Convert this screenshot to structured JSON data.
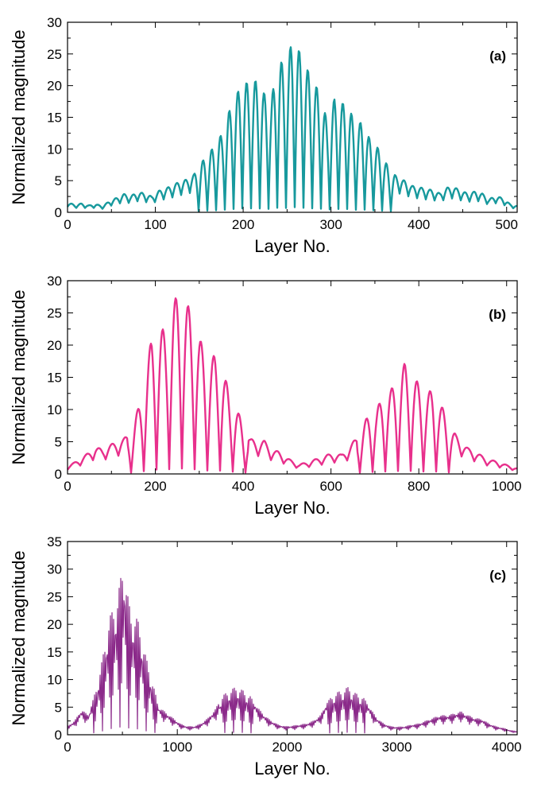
{
  "chart_data": [
    {
      "type": "line",
      "panel_label": "(a)",
      "xlabel": "Layer No.",
      "ylabel": "Normalized magnitude",
      "xlim": [
        0,
        512
      ],
      "ylim": [
        0,
        30
      ],
      "xticks": [
        0,
        100,
        200,
        300,
        400,
        500
      ],
      "yticks": [
        0,
        5,
        10,
        15,
        20,
        25,
        30
      ],
      "color": "#17999d",
      "grid": false,
      "series": [
        {
          "x": [
            0,
            8,
            16,
            24,
            32,
            40,
            48,
            56,
            64,
            72,
            80,
            88,
            96,
            104,
            112,
            120,
            128,
            136,
            144,
            152,
            160,
            168,
            176,
            184,
            192,
            200,
            208,
            216,
            224,
            232,
            240,
            248,
            256,
            264,
            272,
            280,
            288,
            296,
            304,
            312,
            320,
            328,
            336,
            344,
            352,
            360,
            368,
            376,
            384,
            392,
            400,
            408,
            416,
            424,
            432,
            440,
            448,
            456,
            464,
            472,
            480,
            488,
            496,
            504,
            512
          ],
          "values": [
            1.6,
            1.2,
            1.4,
            1.1,
            1.3,
            1.0,
            1.8,
            2.3,
            2.9,
            2.6,
            3.2,
            3.0,
            2.5,
            3.4,
            3.8,
            4.3,
            4.9,
            5.2,
            6.0,
            7.8,
            9.2,
            10.6,
            12.5,
            16.0,
            18.5,
            20.8,
            20.2,
            21.0,
            18.8,
            17.5,
            25.0,
            22.3,
            27.5,
            25.5,
            23.0,
            20.5,
            19.0,
            14.0,
            18.0,
            17.3,
            17.0,
            13.5,
            14.5,
            11.6,
            10.5,
            8.5,
            6.5,
            5.5,
            5.0,
            4.2,
            4.0,
            3.7,
            3.5,
            3.0,
            3.9,
            4.0,
            3.4,
            3.0,
            3.3,
            3.0,
            2.1,
            2.6,
            2.2,
            1.3,
            1.0
          ]
        }
      ]
    },
    {
      "type": "line",
      "panel_label": "(b)",
      "xlabel": "Layer No.",
      "ylabel": "Normalized magnitude",
      "xlim": [
        0,
        1024
      ],
      "ylim": [
        0,
        30
      ],
      "xticks": [
        0,
        200,
        400,
        600,
        800,
        1000
      ],
      "yticks": [
        0,
        5,
        10,
        15,
        20,
        25,
        30
      ],
      "color": "#e8308c",
      "grid": false,
      "series": [
        {
          "x": [
            0,
            16,
            32,
            48,
            64,
            80,
            96,
            112,
            128,
            144,
            160,
            176,
            192,
            208,
            224,
            240,
            256,
            272,
            288,
            304,
            320,
            336,
            352,
            368,
            384,
            400,
            416,
            432,
            448,
            464,
            480,
            496,
            512,
            528,
            544,
            560,
            576,
            592,
            608,
            624,
            640,
            656,
            672,
            688,
            704,
            720,
            736,
            752,
            768,
            784,
            800,
            816,
            832,
            848,
            864,
            880,
            896,
            912,
            928,
            944,
            960,
            976,
            992,
            1008,
            1024
          ],
          "values": [
            1.2,
            1.8,
            2.5,
            3.3,
            4.2,
            3.8,
            4.5,
            5.0,
            5.5,
            6.5,
            10.0,
            14.5,
            21.5,
            23.0,
            22.0,
            26.5,
            28.5,
            26.5,
            24.0,
            20.5,
            17.5,
            18.5,
            17.0,
            12.5,
            10.5,
            7.5,
            5.5,
            5.0,
            5.2,
            3.8,
            3.5,
            2.7,
            2.0,
            1.5,
            1.8,
            2.2,
            2.5,
            3.0,
            3.2,
            3.0,
            4.0,
            5.5,
            7.5,
            9.5,
            10.0,
            12.5,
            13.0,
            15.0,
            17.2,
            15.5,
            14.0,
            12.0,
            13.5,
            11.0,
            9.0,
            6.5,
            5.0,
            4.0,
            3.5,
            2.8,
            2.2,
            2.0,
            1.6,
            1.2,
            0.9
          ]
        }
      ]
    },
    {
      "type": "line",
      "panel_label": "(c)",
      "xlabel": "Layer No.",
      "ylabel": "Normalized magnitude",
      "xlim": [
        0,
        4096
      ],
      "ylim": [
        0,
        35
      ],
      "xticks": [
        0,
        1000,
        2000,
        3000,
        4000
      ],
      "yticks": [
        0,
        5,
        10,
        15,
        20,
        25,
        30,
        35
      ],
      "color": "#8b2a8a",
      "grid": false,
      "series": [
        {
          "x": [
            0,
            64,
            128,
            192,
            256,
            320,
            384,
            448,
            480,
            512,
            544,
            576,
            640,
            704,
            768,
            832,
            896,
            960,
            1024,
            1088,
            1152,
            1216,
            1280,
            1344,
            1408,
            1472,
            1536,
            1600,
            1664,
            1728,
            1792,
            1856,
            1920,
            1984,
            2048,
            2112,
            2176,
            2240,
            2304,
            2368,
            2432,
            2496,
            2560,
            2624,
            2688,
            2752,
            2816,
            2880,
            2944,
            3008,
            3072,
            3136,
            3200,
            3264,
            3328,
            3392,
            3456,
            3520,
            3584,
            3648,
            3712,
            3776,
            3840,
            3904,
            3968,
            4032,
            4096
          ],
          "values": [
            1.5,
            2.5,
            4.5,
            3.5,
            8.0,
            14.0,
            21.5,
            24.0,
            28.0,
            32.0,
            26.0,
            22.0,
            21.0,
            15.0,
            10.0,
            5.0,
            4.0,
            3.0,
            2.0,
            1.5,
            1.5,
            2.0,
            3.0,
            4.5,
            7.0,
            8.0,
            8.7,
            8.0,
            7.0,
            5.0,
            3.5,
            2.5,
            1.8,
            1.5,
            1.6,
            1.8,
            2.0,
            2.5,
            3.5,
            6.0,
            7.5,
            8.0,
            8.7,
            7.5,
            7.0,
            5.0,
            3.0,
            2.0,
            1.5,
            1.4,
            1.5,
            1.8,
            2.0,
            2.5,
            3.0,
            3.5,
            3.5,
            3.8,
            4.2,
            3.5,
            3.0,
            2.8,
            2.0,
            1.5,
            1.2,
            0.8,
            0.6
          ]
        }
      ]
    }
  ]
}
